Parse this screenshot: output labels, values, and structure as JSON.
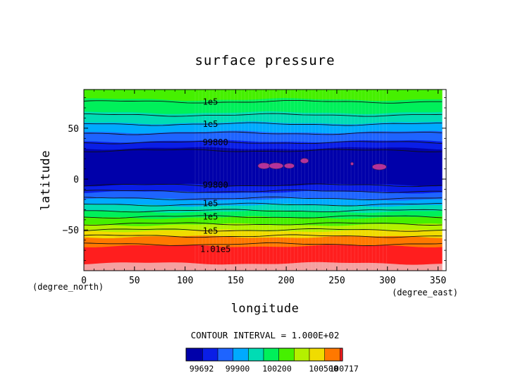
{
  "chart_data": {
    "type": "heatmap",
    "title": "surface pressure",
    "xlabel": "longitude",
    "ylabel": "latitude",
    "x_unit": "(degree_east)",
    "y_unit": "(degree_north)",
    "xlim": [
      0,
      358
    ],
    "ylim": [
      -90,
      88
    ],
    "x_ticks": [
      0,
      50,
      100,
      150,
      200,
      250,
      300,
      350
    ],
    "y_ticks": [
      50,
      0,
      -50
    ],
    "contour_interval_text": "CONTOUR INTERVAL = 1.000E+02",
    "color_levels": [
      {
        "min": 99692,
        "max": 99800,
        "color": "#0000aa"
      },
      {
        "min": 99800,
        "max": 99900,
        "color": "#0a1ee6"
      },
      {
        "min": 99900,
        "max": 100000,
        "color": "#1e64ff"
      },
      {
        "min": 100000,
        "max": 100100,
        "color": "#00aaff"
      },
      {
        "min": 100100,
        "max": 100200,
        "color": "#00dcb4"
      },
      {
        "min": 100200,
        "max": 100300,
        "color": "#00f05a"
      },
      {
        "min": 100300,
        "max": 100400,
        "color": "#46f000"
      },
      {
        "min": 100400,
        "max": 100500,
        "color": "#b4f000"
      },
      {
        "min": 100500,
        "max": 100600,
        "color": "#f0dc00"
      },
      {
        "min": 100600,
        "max": 100700,
        "color": "#ff7800"
      },
      {
        "min": 100700,
        "max": 100717,
        "color": "#ff1e1e"
      }
    ],
    "zonal_bands": [
      {
        "lat_min": 78,
        "lat_max": 88,
        "color": "#46f000"
      },
      {
        "lat_min": 65,
        "lat_max": 78,
        "color": "#00f05a"
      },
      {
        "lat_min": 55,
        "lat_max": 65,
        "color": "#00dcb4"
      },
      {
        "lat_min": 46,
        "lat_max": 55,
        "color": "#00aaff"
      },
      {
        "lat_min": 37,
        "lat_max": 46,
        "color": "#1e64ff"
      },
      {
        "lat_min": 30,
        "lat_max": 37,
        "color": "#0a1ee6"
      },
      {
        "lat_min": -6,
        "lat_max": 30,
        "color": "#0000aa"
      },
      {
        "lat_min": -13,
        "lat_max": -6,
        "color": "#0a1ee6"
      },
      {
        "lat_min": -20,
        "lat_max": -13,
        "color": "#1e64ff"
      },
      {
        "lat_min": -26,
        "lat_max": -20,
        "color": "#00aaff"
      },
      {
        "lat_min": -32,
        "lat_max": -26,
        "color": "#00dcb4"
      },
      {
        "lat_min": -38,
        "lat_max": -32,
        "color": "#00f05a"
      },
      {
        "lat_min": -45,
        "lat_max": -38,
        "color": "#46f000"
      },
      {
        "lat_min": -51,
        "lat_max": -45,
        "color": "#b4f000"
      },
      {
        "lat_min": -57,
        "lat_max": -51,
        "color": "#f0dc00"
      },
      {
        "lat_min": -66,
        "lat_max": -57,
        "color": "#ff7800"
      },
      {
        "lat_min": -83,
        "lat_max": -66,
        "color": "#ff1e1e"
      },
      {
        "lat_min": -90,
        "lat_max": -83,
        "color": "#f5a0a0"
      }
    ],
    "contour_lines_lat": [
      76,
      63,
      54,
      45,
      36,
      28,
      -6,
      -12,
      -19,
      -25,
      -31,
      -37,
      -44,
      -50,
      -56,
      -64
    ],
    "contour_labels": [
      {
        "text": "1e5",
        "lon": 125,
        "lat": 76
      },
      {
        "text": "1e5",
        "lon": 125,
        "lat": 54
      },
      {
        "text": "99800",
        "lon": 130,
        "lat": 36
      },
      {
        "text": "99800",
        "lon": 130,
        "lat": -6
      },
      {
        "text": "1e5",
        "lon": 125,
        "lat": -24
      },
      {
        "text": "1e5",
        "lon": 125,
        "lat": -37
      },
      {
        "text": "1e5",
        "lon": 125,
        "lat": -51
      },
      {
        "text": "1.01e5",
        "lon": 130,
        "lat": -69
      }
    ],
    "low_blobs": [
      {
        "lon": 178,
        "lat": 13,
        "rx": 6,
        "ry": 3
      },
      {
        "lon": 190,
        "lat": 13,
        "rx": 7,
        "ry": 3
      },
      {
        "lon": 203,
        "lat": 13,
        "rx": 5,
        "ry": 2.5
      },
      {
        "lon": 218,
        "lat": 18,
        "rx": 4,
        "ry": 2.5
      },
      {
        "lon": 265,
        "lat": 15,
        "rx": 1.5,
        "ry": 1.5
      },
      {
        "lon": 292,
        "lat": 12,
        "rx": 7,
        "ry": 3
      }
    ],
    "low_blob_color": "#b4329a",
    "colorbar_labels": [
      "99692",
      "99900",
      "100200",
      "100500",
      "100717"
    ]
  }
}
